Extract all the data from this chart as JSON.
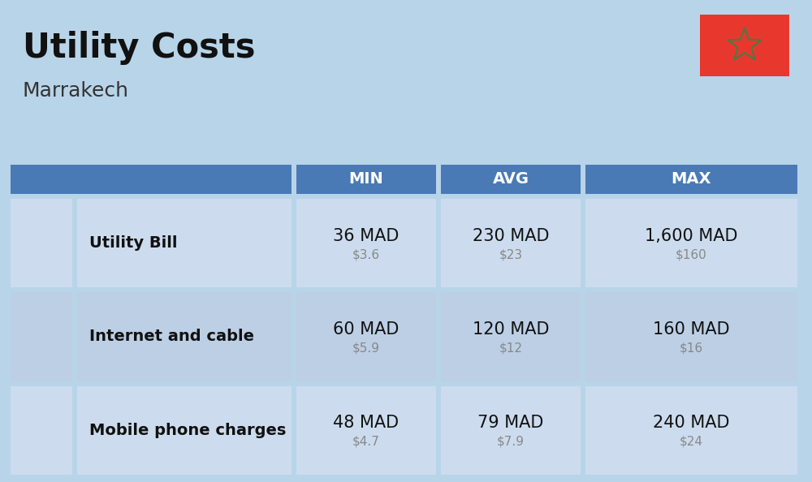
{
  "title": "Utility Costs",
  "subtitle": "Marrakech",
  "background_color": "#b8d4e8",
  "header_bg_color": "#4a7ab5",
  "header_text_color": "#ffffff",
  "row_bg_color_1": "#ccdcee",
  "row_bg_color_2": "#bccfe5",
  "col_headers": [
    "MIN",
    "AVG",
    "MAX"
  ],
  "rows": [
    {
      "label": "Utility Bill",
      "min_mad": "36 MAD",
      "min_usd": "$3.6",
      "avg_mad": "230 MAD",
      "avg_usd": "$23",
      "max_mad": "1,600 MAD",
      "max_usd": "$160"
    },
    {
      "label": "Internet and cable",
      "min_mad": "60 MAD",
      "min_usd": "$5.9",
      "avg_mad": "120 MAD",
      "avg_usd": "$12",
      "max_mad": "160 MAD",
      "max_usd": "$16"
    },
    {
      "label": "Mobile phone charges",
      "min_mad": "48 MAD",
      "min_usd": "$4.7",
      "avg_mad": "79 MAD",
      "avg_usd": "$7.9",
      "max_mad": "240 MAD",
      "max_usd": "$24"
    }
  ],
  "flag_red": "#e8382d",
  "flag_green": "#4a7a45",
  "title_fontsize": 30,
  "subtitle_fontsize": 18,
  "header_fontsize": 14,
  "label_fontsize": 14,
  "value_fontsize": 15,
  "usd_fontsize": 11,
  "fig_width": 10.0,
  "fig_height": 5.94
}
